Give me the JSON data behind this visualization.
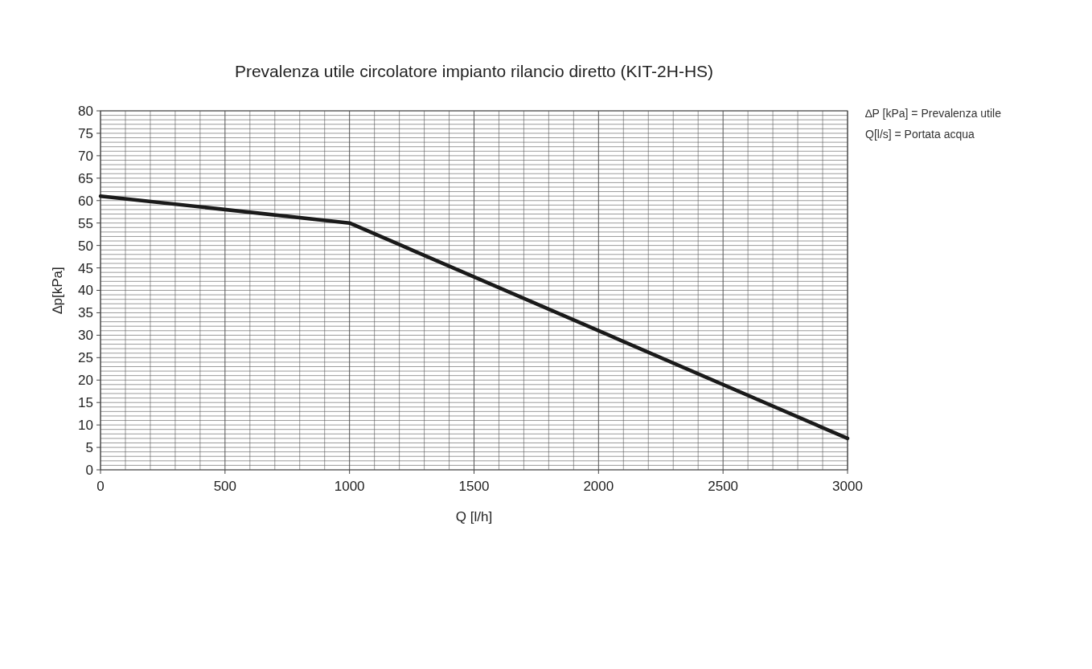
{
  "chart_data": {
    "type": "line",
    "title": "Prevalenza utile circolatore impianto rilancio diretto (KIT-2H-HS)",
    "xlabel": "Q [l/h]",
    "ylabel": "∆p[kPa]",
    "annotations": [
      "∆P [kPa] = Prevalenza utile",
      "Q[l/s] = Portata acqua"
    ],
    "x": [
      0,
      1000,
      3000
    ],
    "series": [
      {
        "color": "#1a1a1a",
        "values": [
          61,
          55,
          7
        ]
      }
    ],
    "xlim": [
      0,
      3000
    ],
    "ylim": [
      0,
      80
    ],
    "xticks": [
      0,
      {
        "value": 100,
        "label": null
      },
      {
        "value": 200,
        "label": null
      },
      {
        "value": 300,
        "label": null
      },
      {
        "value": 400,
        "label": null
      },
      500,
      {
        "value": 600,
        "label": null
      },
      {
        "value": 700,
        "label": null
      },
      {
        "value": 800,
        "label": null
      },
      {
        "value": 900,
        "label": null
      },
      1000,
      {
        "value": 1100,
        "label": null
      },
      {
        "value": 1200,
        "label": null
      },
      {
        "value": 1300,
        "label": null
      },
      {
        "value": 1400,
        "label": null
      },
      1500,
      {
        "value": 1600,
        "label": null
      },
      {
        "value": 1700,
        "label": null
      },
      {
        "value": 1800,
        "label": null
      },
      {
        "value": 1900,
        "label": null
      },
      2000,
      {
        "value": 2100,
        "label": null
      },
      {
        "value": 2200,
        "label": null
      },
      {
        "value": 2300,
        "label": null
      },
      {
        "value": 2400,
        "label": null
      },
      2500,
      {
        "value": 2600,
        "label": null
      },
      {
        "value": 2700,
        "label": null
      },
      {
        "value": 2800,
        "label": null
      },
      {
        "value": 2900,
        "label": null
      },
      3000
    ],
    "yticks": [
      0,
      {
        "value": 1,
        "label": null
      },
      {
        "value": 2,
        "label": null
      },
      {
        "value": 3,
        "label": null
      },
      {
        "value": 4,
        "label": null
      },
      5,
      {
        "value": 6,
        "label": null
      },
      {
        "value": 7,
        "label": null
      },
      {
        "value": 8,
        "label": null
      },
      {
        "value": 9,
        "label": null
      },
      10,
      {
        "value": 11,
        "label": null
      },
      {
        "value": 12,
        "label": null
      },
      {
        "value": 13,
        "label": null
      },
      {
        "value": 14,
        "label": null
      },
      15,
      {
        "value": 16,
        "label": null
      },
      {
        "value": 17,
        "label": null
      },
      {
        "value": 18,
        "label": null
      },
      {
        "value": 19,
        "label": null
      },
      20,
      {
        "value": 21,
        "label": null
      },
      {
        "value": 22,
        "label": null
      },
      {
        "value": 23,
        "label": null
      },
      {
        "value": 24,
        "label": null
      },
      25,
      {
        "value": 26,
        "label": null
      },
      {
        "value": 27,
        "label": null
      },
      {
        "value": 28,
        "label": null
      },
      {
        "value": 29,
        "label": null
      },
      30,
      {
        "value": 31,
        "label": null
      },
      {
        "value": 32,
        "label": null
      },
      {
        "value": 33,
        "label": null
      },
      {
        "value": 34,
        "label": null
      },
      35,
      {
        "value": 36,
        "label": null
      },
      {
        "value": 37,
        "label": null
      },
      {
        "value": 38,
        "label": null
      },
      {
        "value": 39,
        "label": null
      },
      40,
      {
        "value": 41,
        "label": null
      },
      {
        "value": 42,
        "label": null
      },
      {
        "value": 43,
        "label": null
      },
      {
        "value": 44,
        "label": null
      },
      45,
      {
        "value": 46,
        "label": null
      },
      {
        "value": 47,
        "label": null
      },
      {
        "value": 48,
        "label": null
      },
      {
        "value": 49,
        "label": null
      },
      50,
      {
        "value": 51,
        "label": null
      },
      {
        "value": 52,
        "label": null
      },
      {
        "value": 53,
        "label": null
      },
      {
        "value": 54,
        "label": null
      },
      55,
      {
        "value": 56,
        "label": null
      },
      {
        "value": 57,
        "label": null
      },
      {
        "value": 58,
        "label": null
      },
      {
        "value": 59,
        "label": null
      },
      60,
      {
        "value": 61,
        "label": null
      },
      {
        "value": 62,
        "label": null
      },
      {
        "value": 63,
        "label": null
      },
      {
        "value": 64,
        "label": null
      },
      65,
      {
        "value": 66,
        "label": null
      },
      {
        "value": 67,
        "label": null
      },
      {
        "value": 68,
        "label": null
      },
      {
        "value": 69,
        "label": null
      },
      70,
      {
        "value": 71,
        "label": null
      },
      {
        "value": 72,
        "label": null
      },
      {
        "value": 73,
        "label": null
      },
      {
        "value": 74,
        "label": null
      },
      75,
      {
        "value": 76,
        "label": null
      },
      {
        "value": 77,
        "label": null
      },
      {
        "value": 78,
        "label": null
      },
      {
        "value": 79,
        "label": null
      },
      80
    ],
    "grid": true,
    "marker": "none",
    "line_style": "solid"
  }
}
